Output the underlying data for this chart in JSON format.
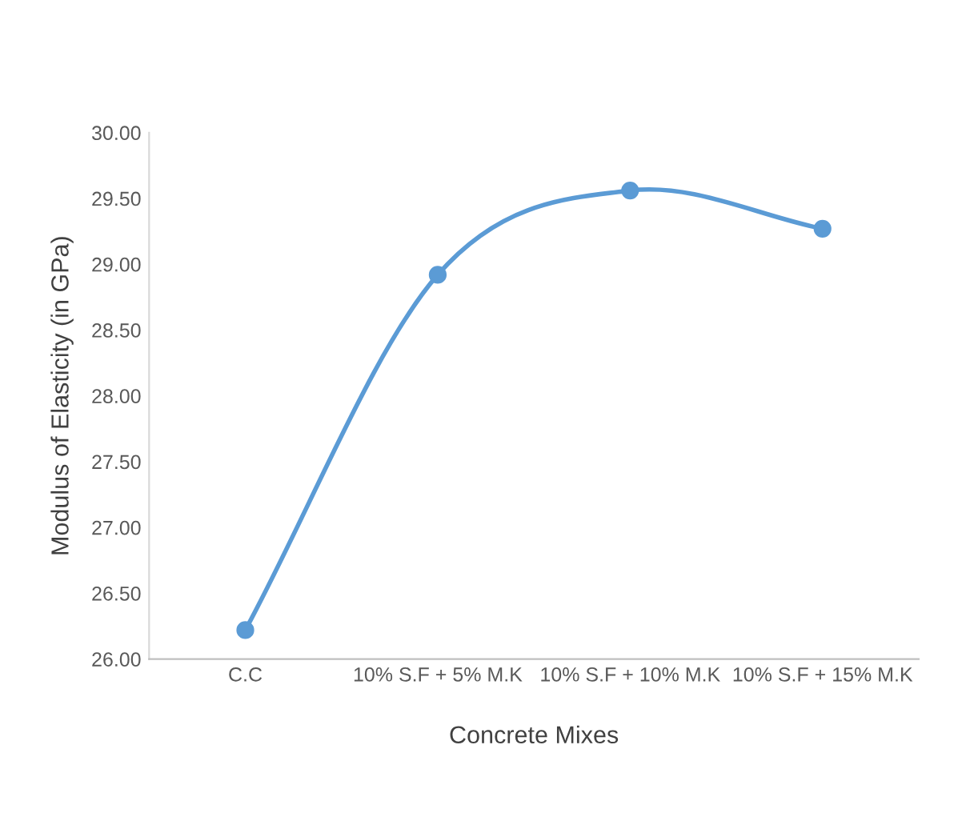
{
  "chart_data": {
    "type": "line",
    "xlabel": "Concrete Mixes",
    "ylabel": "Modulus of Elasticity (in GPa)",
    "categories": [
      "C.C",
      "10% S.F + 5% M.K",
      "10% S.F + 10% M.K",
      "10% S.F + 15% M.K"
    ],
    "series": [
      {
        "color": "#5b9bd5",
        "values": [
          26.22,
          28.92,
          29.56,
          29.27
        ]
      }
    ],
    "ylim": [
      26,
      30
    ],
    "yticks": [
      {
        "value": 26,
        "label": "26.00"
      },
      {
        "value": 26.5,
        "label": "26.50"
      },
      {
        "value": 27,
        "label": "27.00"
      },
      {
        "value": 27.5,
        "label": "27.50"
      },
      {
        "value": 28,
        "label": "28.00"
      },
      {
        "value": 28.5,
        "label": "28.50"
      },
      {
        "value": 29,
        "label": "29.00"
      },
      {
        "value": 29.5,
        "label": "29.50"
      },
      {
        "value": 30,
        "label": "30.00"
      }
    ],
    "grid": false,
    "legend": false,
    "marker": "circle",
    "line_style": "solid"
  }
}
